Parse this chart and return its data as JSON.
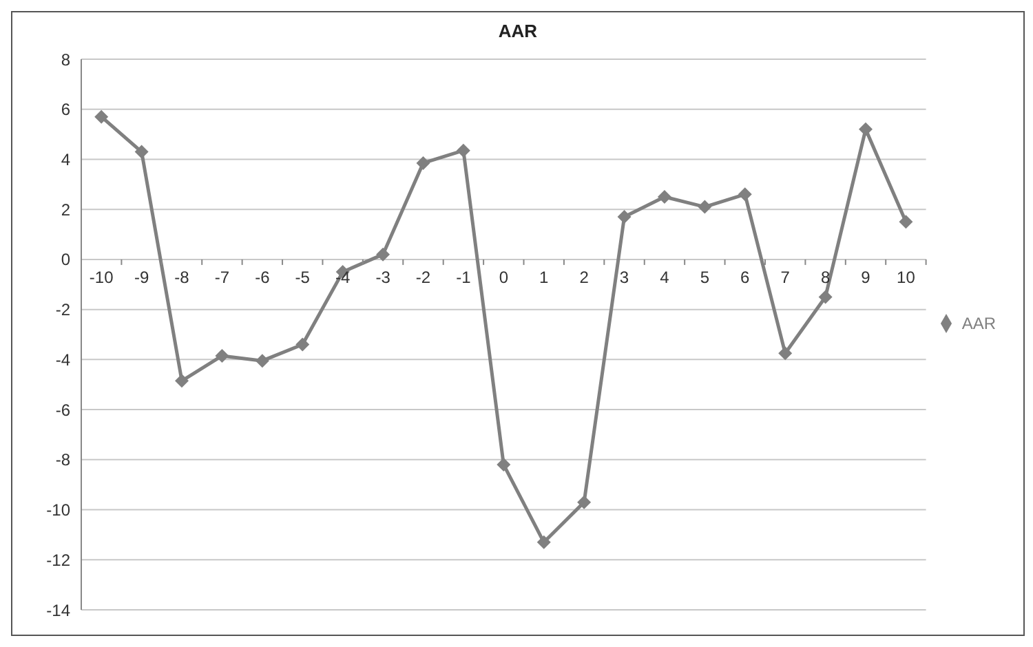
{
  "chart_data": {
    "type": "line",
    "title": "AAR",
    "categories": [
      "-10",
      "-9",
      "-8",
      "-7",
      "-6",
      "-5",
      "-4",
      "-3",
      "-2",
      "-1",
      "0",
      "1",
      "2",
      "3",
      "4",
      "5",
      "6",
      "7",
      "8",
      "9",
      "10"
    ],
    "series": [
      {
        "name": "AAR",
        "color": "#808080",
        "values": [
          5.7,
          4.3,
          -4.85,
          -3.85,
          -4.05,
          -3.4,
          -0.5,
          0.2,
          3.85,
          4.35,
          -8.2,
          -11.3,
          -9.7,
          1.7,
          2.5,
          2.1,
          2.6,
          -3.75,
          -1.5,
          5.2,
          1.5
        ]
      }
    ],
    "ylim": [
      -14,
      8
    ],
    "yticks": [
      -14,
      -12,
      -10,
      -8,
      -6,
      -4,
      -2,
      0,
      2,
      4,
      6,
      8
    ],
    "grid": "y",
    "legend": "right",
    "marker": "diamond",
    "line_style": "solid"
  }
}
